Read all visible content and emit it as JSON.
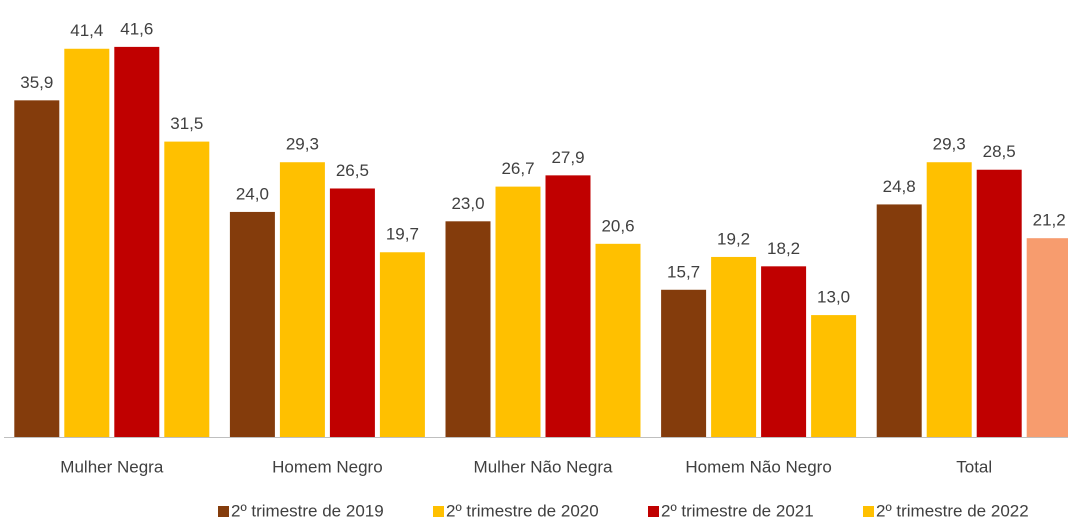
{
  "chart_data": {
    "type": "bar",
    "categories": [
      "Mulher Negra",
      "Homem Negro",
      "Mulher Não Negra",
      "Homem Não Negro",
      "Total"
    ],
    "series": [
      {
        "name": "2º trimestre de 2019",
        "color": "#843C0C",
        "values": [
          35.9,
          24.0,
          23.0,
          15.7,
          24.8
        ],
        "value_labels": [
          "35,9",
          "24,0",
          "23,0",
          "15,7",
          "24,8"
        ]
      },
      {
        "name": "2º trimestre de 2020",
        "color": "#FFC000",
        "values": [
          41.4,
          29.3,
          26.7,
          19.2,
          29.3
        ],
        "value_labels": [
          "41,4",
          "29,3",
          "26,7",
          "19,2",
          "29,3"
        ]
      },
      {
        "name": "2º trimestre de 2021",
        "color": "#C00000",
        "values": [
          41.6,
          26.5,
          27.9,
          18.2,
          28.5
        ],
        "value_labels": [
          "41,6",
          "26,5",
          "27,9",
          "18,2",
          "28,5"
        ]
      },
      {
        "name": "2º trimestre de 2022",
        "color": "#FFC000",
        "colors": [
          "#FFC000",
          "#FFC000",
          "#FFC000",
          "#FFC000",
          "#F79C6E"
        ],
        "values": [
          31.5,
          19.7,
          20.6,
          13.0,
          21.2
        ],
        "value_labels": [
          "31,5",
          "19,7",
          "20,6",
          "13,0",
          "21,2"
        ]
      }
    ],
    "ylim": [
      0,
      45
    ],
    "legend": "bottom"
  }
}
